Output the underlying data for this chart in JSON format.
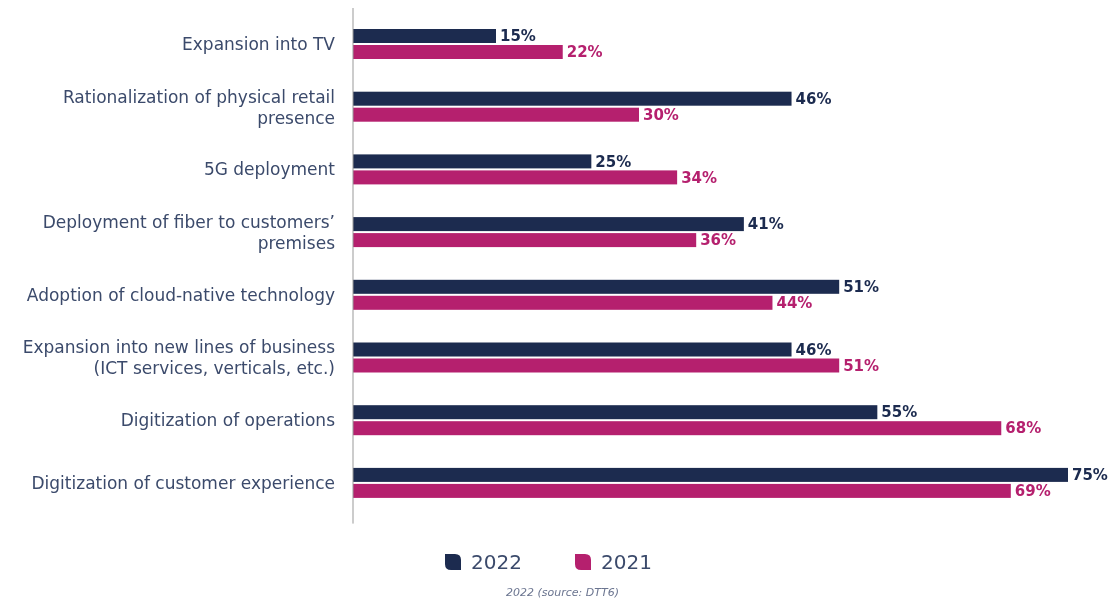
{
  "chart_data": {
    "type": "bar",
    "orientation": "horizontal",
    "categories": [
      "Expansion into TV",
      "Rationalization of physical retail presence",
      "5G deployment",
      "Deployment of fiber to customers’ premises",
      "Adoption of cloud-native technology",
      "Expansion into new lines of business (ICT services, verticals, etc.)",
      "Digitization of operations",
      "Digitization of customer experience"
    ],
    "series": [
      {
        "name": "2022",
        "color": "#1c2b4f",
        "values": [
          15,
          46,
          25,
          41,
          51,
          46,
          55,
          75
        ],
        "value_labels": [
          "15%",
          "46%",
          "25%",
          "41%",
          "51%",
          "46%",
          "55%",
          "75%"
        ]
      },
      {
        "name": "2021",
        "color": "#b5206e",
        "values": [
          22,
          30,
          34,
          36,
          44,
          51,
          68,
          69
        ],
        "value_labels": [
          "22%",
          "30%",
          "34%",
          "36%",
          "44%",
          "51%",
          "68%",
          "69%"
        ]
      }
    ],
    "legend": "bottom",
    "annotations": [
      "2022 (source: DTT6)"
    ]
  }
}
